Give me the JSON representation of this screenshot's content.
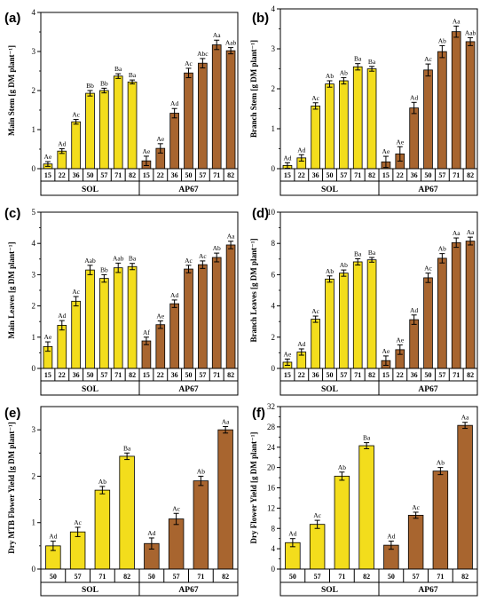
{
  "colors": {
    "sol": "#f3dd1c",
    "ap67": "#a8652f",
    "axis": "#000000"
  },
  "chart_data": [
    {
      "id": "a",
      "panel_label": "(a)",
      "type": "bar",
      "ylabel": "Main Stem [g DM plant⁻¹]",
      "ylim": [
        0,
        4
      ],
      "yticks": [
        "0",
        "1",
        "2",
        "3",
        "4"
      ],
      "groups": [
        {
          "name": "SOL",
          "categories": [
            "15",
            "22",
            "36",
            "50",
            "57",
            "71",
            "82"
          ],
          "values": [
            0.12,
            0.45,
            1.2,
            1.93,
            2.0,
            2.37,
            2.22
          ],
          "errors": [
            0.06,
            0.06,
            0.06,
            0.07,
            0.06,
            0.06,
            0.05
          ],
          "labels": [
            "Ae",
            "Ad",
            "Ac",
            "Bb",
            "Bb",
            "Ba",
            "Ba"
          ]
        },
        {
          "name": "AP67",
          "categories": [
            "15",
            "22",
            "36",
            "50",
            "57",
            "71",
            "82"
          ],
          "values": [
            0.2,
            0.52,
            1.42,
            2.45,
            2.7,
            3.17,
            3.02
          ],
          "errors": [
            0.12,
            0.12,
            0.12,
            0.12,
            0.12,
            0.12,
            0.08
          ],
          "labels": [
            "Ae",
            "Ae",
            "Ad",
            "Ac",
            "Abc",
            "Aa",
            "Aab"
          ]
        }
      ]
    },
    {
      "id": "b",
      "panel_label": "(b)",
      "type": "bar",
      "ylabel": "Branch Stem [g DM plant⁻¹]",
      "ylim": [
        0,
        4
      ],
      "yticks": [
        "0",
        "1",
        "2",
        "3",
        "4"
      ],
      "groups": [
        {
          "name": "SOL",
          "categories": [
            "15",
            "22",
            "36",
            "50",
            "57",
            "71",
            "82"
          ],
          "values": [
            0.08,
            0.27,
            1.57,
            2.12,
            2.2,
            2.55,
            2.5
          ],
          "errors": [
            0.07,
            0.08,
            0.08,
            0.08,
            0.08,
            0.08,
            0.06
          ],
          "labels": [
            "Ad",
            "Ad",
            "Ac",
            "Ab",
            "Ab",
            "Ba",
            "Ba"
          ]
        },
        {
          "name": "AP67",
          "categories": [
            "15",
            "22",
            "36",
            "50",
            "57",
            "71",
            "82"
          ],
          "values": [
            0.17,
            0.37,
            1.52,
            2.47,
            2.93,
            3.43,
            3.18
          ],
          "errors": [
            0.14,
            0.18,
            0.14,
            0.15,
            0.15,
            0.14,
            0.1
          ],
          "labels": [
            "Ae",
            "Ae",
            "Ad",
            "Ac",
            "Ab",
            "Aa",
            "Aab"
          ]
        }
      ]
    },
    {
      "id": "c",
      "panel_label": "(c)",
      "type": "bar",
      "ylabel": "Main Leaves [g DM plant⁻¹]",
      "ylim": [
        0,
        5
      ],
      "yticks": [
        "0",
        "1",
        "2",
        "3",
        "4",
        "5"
      ],
      "groups": [
        {
          "name": "SOL",
          "categories": [
            "15",
            "22",
            "36",
            "50",
            "57",
            "71",
            "82"
          ],
          "values": [
            0.7,
            1.38,
            2.15,
            3.15,
            2.88,
            3.22,
            3.26
          ],
          "errors": [
            0.15,
            0.15,
            0.15,
            0.15,
            0.12,
            0.15,
            0.1
          ],
          "labels": [
            "Ae",
            "Ad",
            "Ac",
            "Aab",
            "Bb",
            "Aab",
            "Ba"
          ]
        },
        {
          "name": "AP67",
          "categories": [
            "15",
            "22",
            "36",
            "50",
            "57",
            "71",
            "82"
          ],
          "values": [
            0.88,
            1.4,
            2.07,
            3.18,
            3.32,
            3.55,
            3.95
          ],
          "errors": [
            0.12,
            0.12,
            0.12,
            0.12,
            0.12,
            0.14,
            0.12
          ],
          "labels": [
            "Af",
            "Ae",
            "Ad",
            "Ac",
            "Ac",
            "Ab",
            "Aa"
          ]
        }
      ]
    },
    {
      "id": "d",
      "panel_label": "(d)",
      "type": "bar",
      "ylabel": "Branch Leaves [g DM plant⁻¹]",
      "ylim": [
        0,
        10
      ],
      "yticks": [
        "0",
        "2",
        "4",
        "6",
        "8",
        "10"
      ],
      "groups": [
        {
          "name": "SOL",
          "categories": [
            "15",
            "22",
            "36",
            "50",
            "57",
            "71",
            "82"
          ],
          "values": [
            0.4,
            1.05,
            3.15,
            5.72,
            6.1,
            6.82,
            6.95
          ],
          "errors": [
            0.2,
            0.2,
            0.2,
            0.2,
            0.2,
            0.2,
            0.15
          ],
          "labels": [
            "Ae",
            "Ad",
            "Ac",
            "Ab",
            "Ab",
            "Ba",
            "Ba"
          ]
        },
        {
          "name": "AP67",
          "categories": [
            "15",
            "22",
            "36",
            "50",
            "57",
            "71",
            "82"
          ],
          "values": [
            0.5,
            1.2,
            3.12,
            5.8,
            7.05,
            8.05,
            8.15
          ],
          "errors": [
            0.3,
            0.3,
            0.3,
            0.3,
            0.3,
            0.3,
            0.25
          ],
          "labels": [
            "Ae",
            "Ae",
            "Ad",
            "Ac",
            "Ab",
            "Aa",
            "Aa"
          ]
        }
      ]
    },
    {
      "id": "e",
      "panel_label": "(e)",
      "type": "bar",
      "ylabel": "Dry MTB Flower Yield [g DM plant⁻¹]",
      "ylim": [
        0,
        3.5
      ],
      "yticks": [
        "0",
        "1",
        "2",
        "3"
      ],
      "yticks_values": [
        0,
        1,
        2,
        3
      ],
      "groups": [
        {
          "name": "SOL",
          "categories": [
            "50",
            "57",
            "71",
            "82"
          ],
          "values": [
            0.5,
            0.8,
            1.7,
            2.43
          ],
          "errors": [
            0.1,
            0.1,
            0.08,
            0.07
          ],
          "labels": [
            "Ad",
            "Ac",
            "Ab",
            "Ba"
          ]
        },
        {
          "name": "AP67",
          "categories": [
            "50",
            "57",
            "71",
            "82"
          ],
          "values": [
            0.55,
            1.08,
            1.9,
            3.0
          ],
          "errors": [
            0.12,
            0.12,
            0.1,
            0.07
          ],
          "labels": [
            "Ad",
            "Ac",
            "Ab",
            "Aa"
          ]
        }
      ]
    },
    {
      "id": "f",
      "panel_label": "(f)",
      "type": "bar",
      "ylabel": "Dry Flower Yield [g DM plant⁻¹]",
      "ylim": [
        0,
        32
      ],
      "yticks": [
        "0",
        "4",
        "8",
        "12",
        "16",
        "20",
        "24",
        "28",
        "32"
      ],
      "groups": [
        {
          "name": "SOL",
          "categories": [
            "50",
            "57",
            "71",
            "82"
          ],
          "values": [
            5.2,
            8.8,
            18.3,
            24.3
          ],
          "errors": [
            0.8,
            0.8,
            0.8,
            0.6
          ],
          "labels": [
            "Ad",
            "Ac",
            "Ab",
            "Ba"
          ]
        },
        {
          "name": "AP67",
          "categories": [
            "50",
            "57",
            "71",
            "82"
          ],
          "values": [
            4.7,
            10.6,
            19.3,
            28.3
          ],
          "errors": [
            0.8,
            0.6,
            0.7,
            0.6
          ],
          "labels": [
            "Ad",
            "Ac",
            "Ab",
            "Aa"
          ]
        }
      ]
    }
  ]
}
